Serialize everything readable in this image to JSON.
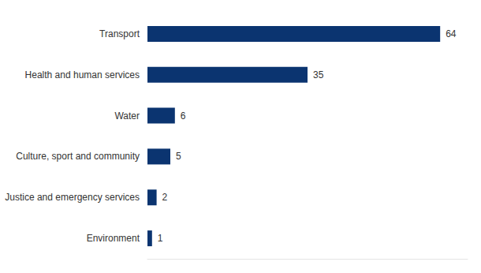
{
  "chart_data": {
    "type": "bar",
    "orientation": "horizontal",
    "categories": [
      "Transport",
      "Health and human services",
      "Water",
      "Culture, sport and community",
      "Justice and emergency services",
      "Environment"
    ],
    "values": [
      64,
      35,
      6,
      5,
      2,
      1
    ],
    "color": "#0b3470",
    "xlim": [
      0,
      70
    ],
    "grid": false,
    "data_labels": true,
    "tick_labels": "y"
  }
}
